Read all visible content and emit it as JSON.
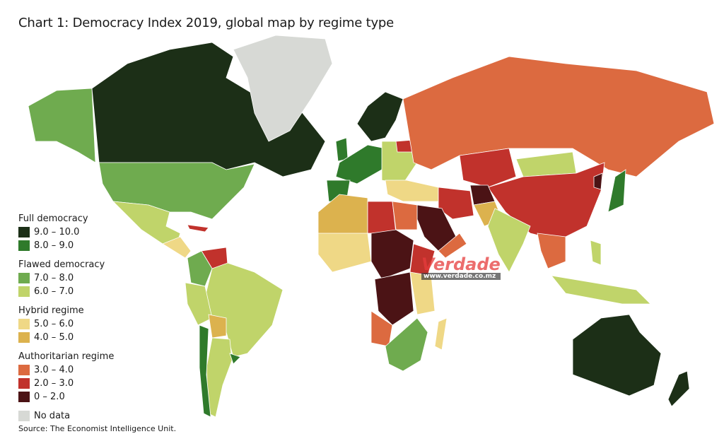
{
  "title": "Chart 1: Democracy Index 2019, global map by regime type",
  "source": "Source: The Economist Intelligence Unit.",
  "watermark": {
    "text": "Verdade",
    "url": "www.verdade.co.mz"
  },
  "legend": [
    {
      "group": "Full democracy",
      "items": [
        {
          "label": "9.0 – 10.0",
          "color": "#1c2f17"
        },
        {
          "label": "8.0 – 9.0",
          "color": "#2f7a2b"
        }
      ]
    },
    {
      "group": "Flawed democracy",
      "items": [
        {
          "label": "7.0 – 8.0",
          "color": "#6fab4f"
        },
        {
          "label": "6.0 – 7.0",
          "color": "#c0d46a"
        }
      ]
    },
    {
      "group": "Hybrid regime",
      "items": [
        {
          "label": "5.0 – 6.0",
          "color": "#efd886"
        },
        {
          "label": "4.0 – 5.0",
          "color": "#dcb24e"
        }
      ]
    },
    {
      "group": "Authoritarian regime",
      "items": [
        {
          "label": "3.0 – 4.0",
          "color": "#dc6a40"
        },
        {
          "label": "2.0 – 3.0",
          "color": "#c1322c"
        },
        {
          "label": "0 – 2.0",
          "color": "#4b1315"
        }
      ]
    },
    {
      "group": "",
      "items": [
        {
          "label": "No data",
          "color": "#d7d9d5"
        }
      ]
    }
  ]
}
